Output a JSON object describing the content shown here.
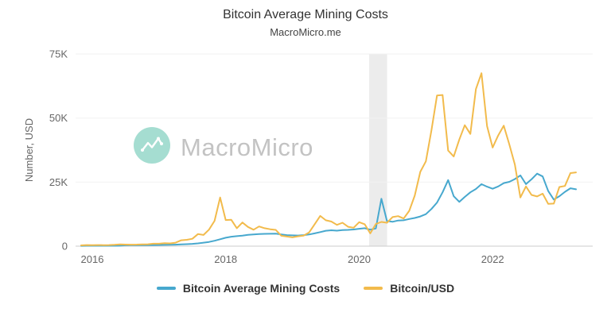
{
  "header": {
    "title": "Bitcoin Average Mining Costs",
    "subtitle": "MacroMicro.me"
  },
  "watermark": {
    "text": "MacroMicro",
    "logo_color": "#8FD5C5"
  },
  "legend": [
    {
      "label": "Bitcoin Average Mining Costs",
      "color": "#47A8CE"
    },
    {
      "label": "Bitcoin/USD",
      "color": "#F2BB4C"
    }
  ],
  "chart_data": {
    "type": "line",
    "title": "Bitcoin Average Mining Costs",
    "subtitle": "MacroMicro.me",
    "xlabel": "",
    "ylabel": "Number, USD",
    "y_range": [
      0,
      75000
    ],
    "x_range": [
      2015.75,
      2023.5
    ],
    "grid": "faint-horizontal",
    "legend_position": "bottom",
    "x_start": {
      "year": 2015,
      "month": 11
    },
    "interval": "monthly",
    "x_ticks": [
      {
        "value": 2016,
        "label": "2016"
      },
      {
        "value": 2018,
        "label": "2018"
      },
      {
        "value": 2020,
        "label": "2020"
      },
      {
        "value": 2022,
        "label": "2022"
      }
    ],
    "y_ticks": [
      {
        "value": 0,
        "label": "0"
      },
      {
        "value": 25000,
        "label": "25K"
      },
      {
        "value": 50000,
        "label": "50K"
      },
      {
        "value": 75000,
        "label": "75K"
      }
    ],
    "plot_band": {
      "from": 2020.15,
      "to": 2020.42,
      "color": "rgba(200,200,200,0.35)"
    },
    "series": [
      {
        "name": "Bitcoin Average Mining Costs",
        "color": "#47A8CE",
        "values": [
          130,
          140,
          150,
          155,
          160,
          165,
          170,
          180,
          350,
          370,
          385,
          395,
          405,
          420,
          450,
          490,
          540,
          600,
          680,
          780,
          900,
          1100,
          1350,
          1650,
          2100,
          2700,
          3300,
          3700,
          3900,
          4100,
          4400,
          4600,
          4700,
          4800,
          4850,
          4900,
          4600,
          4300,
          4200,
          4150,
          4300,
          4550,
          5000,
          5500,
          6000,
          6200,
          6050,
          6250,
          6350,
          6500,
          6800,
          7000,
          6400,
          6900,
          18500,
          9800,
          9500,
          10000,
          10100,
          10600,
          11000,
          11600,
          12500,
          14500,
          17000,
          21000,
          25800,
          19500,
          17300,
          19200,
          21000,
          22300,
          24200,
          23200,
          22400,
          23300,
          24600,
          25100,
          26200,
          27600,
          24200,
          26100,
          28300,
          27200,
          21500,
          18200,
          19500,
          21200,
          22600,
          22200
        ]
      },
      {
        "name": "Bitcoin/USD",
        "color": "#F2BB4C",
        "values": [
          320,
          430,
          370,
          437,
          416,
          448,
          530,
          670,
          625,
          575,
          610,
          700,
          745,
          960,
          970,
          1180,
          1080,
          1350,
          2300,
          2480,
          2875,
          4700,
          4360,
          6450,
          9900,
          19000,
          10200,
          10300,
          7000,
          9250,
          7500,
          6400,
          7700,
          7000,
          6600,
          6350,
          4050,
          3750,
          3450,
          3850,
          4100,
          5320,
          8550,
          11800,
          10100,
          9600,
          8300,
          9150,
          7550,
          7200,
          9350,
          8550,
          5000,
          8650,
          9450,
          9150,
          11350,
          11700,
          10800,
          13800,
          19700,
          29000,
          33100,
          45200,
          58800,
          59000,
          37300,
          35000,
          41600,
          47200,
          43800,
          61300,
          67500,
          46900,
          38500,
          43200,
          47000,
          39700,
          31800,
          19000,
          23300,
          20000,
          19400,
          20500,
          16500,
          16600,
          23100,
          23500,
          28500,
          28800
        ]
      }
    ]
  }
}
